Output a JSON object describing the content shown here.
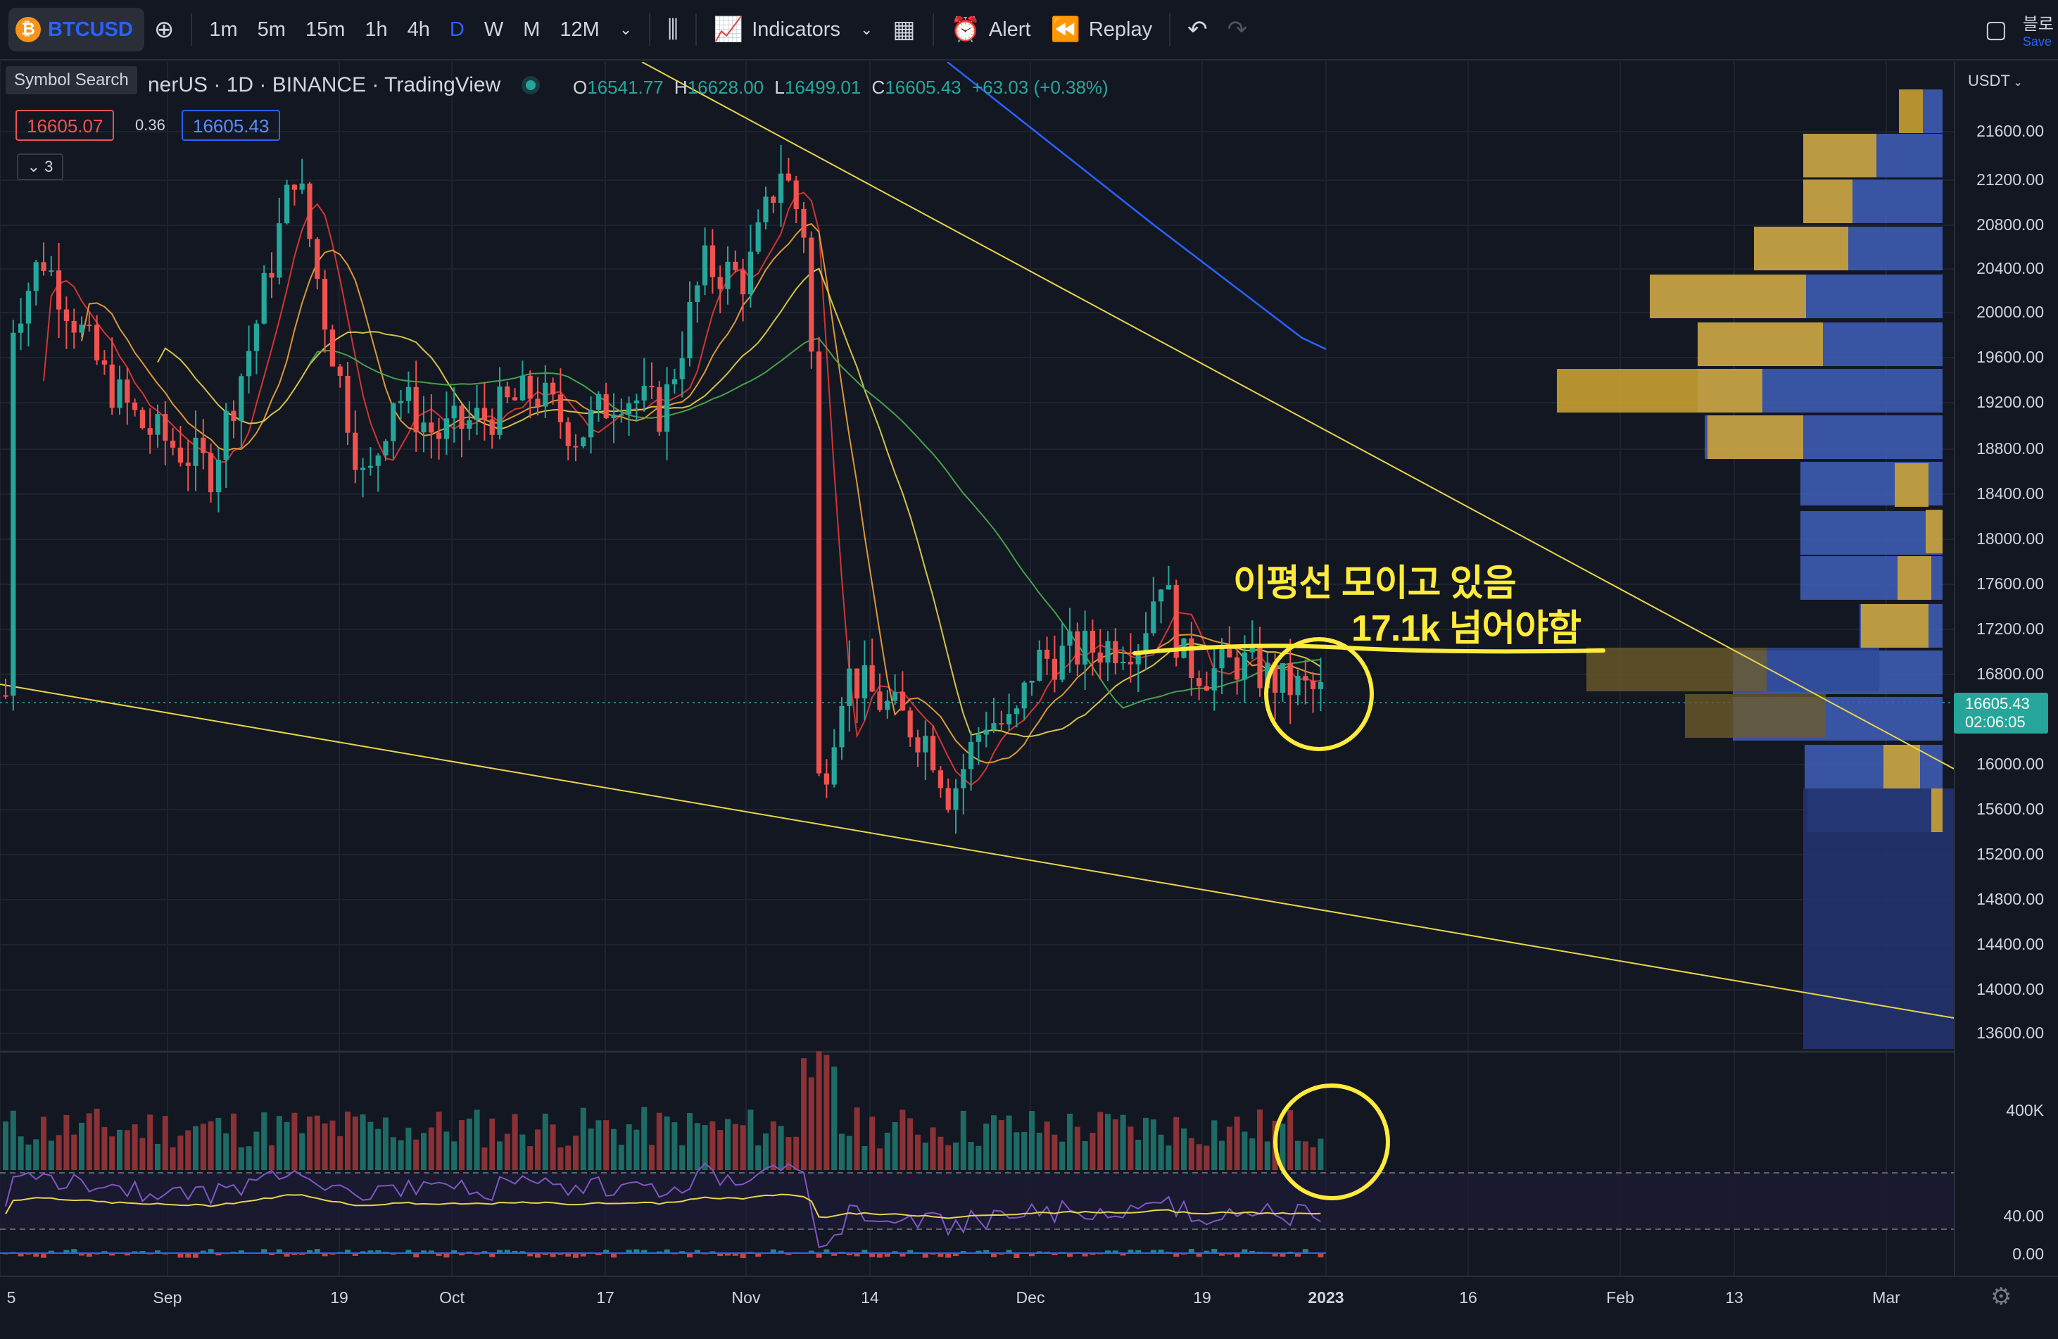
{
  "toolbar": {
    "symbol": "BTCUSD",
    "coin_glyph": "₿",
    "intervals": [
      "1m",
      "5m",
      "15m",
      "1h",
      "4h",
      "D",
      "W",
      "M",
      "12M"
    ],
    "active_interval": "D",
    "indicators_label": "Indicators",
    "alert_label": "Alert",
    "replay_label": "Replay",
    "right_label": "블로",
    "right_sublabel": "Save"
  },
  "tooltip": "Symbol Search",
  "legend": {
    "title": "nerUS · 1D · BINANCE · TradingView",
    "open_key": "O",
    "open": "16541.77",
    "high_key": "H",
    "high": "16628.00",
    "low_key": "L",
    "low": "16499.01",
    "close_key": "C",
    "close": "16605.43",
    "change": "+63.03 (+0.38%)"
  },
  "bid": "16605.07",
  "spread": "0.36",
  "ask": "16605.43",
  "collapse_count": "3",
  "price_axis": {
    "currency": "USDT",
    "labels": [
      "21600.00",
      "21200.00",
      "20800.00",
      "20400.00",
      "20000.00",
      "19600.00",
      "19200.00",
      "18800.00",
      "18400.00",
      "18000.00",
      "17600.00",
      "17200.00",
      "16800.00",
      "16000.00",
      "15600.00",
      "15200.00",
      "14800.00",
      "14400.00",
      "14000.00",
      "13600.00"
    ],
    "last_price": "16605.43",
    "countdown": "02:06:05",
    "volume_label": "400K",
    "rsi_label": "40.00",
    "macd_label": "0.00"
  },
  "time_axis": [
    "5",
    "Sep",
    "19",
    "Oct",
    "17",
    "Nov",
    "14",
    "Dec",
    "19",
    "2023",
    "16",
    "Feb",
    "13",
    "Mar"
  ],
  "annotations": {
    "line1": "이평선 모이고 있음",
    "line2": "17.1k 넘어야함"
  },
  "colors": {
    "up": "#26a69a",
    "down": "#ef5350",
    "annotation": "#ffeb3b",
    "accent": "#2962ff"
  },
  "chart_data": {
    "type": "candlestick",
    "symbol": "BTCUSD",
    "interval": "1D",
    "exchange": "BINANCE",
    "ylim": [
      13600,
      21800
    ],
    "last": 16605.43,
    "closes_approx": [
      {
        "x": "Sep 19",
        "y": 19400
      },
      {
        "x": "Oct 17",
        "y": 19500
      },
      {
        "x": "Nov 5",
        "y": 21200
      },
      {
        "x": "Nov 9",
        "y": 15800
      },
      {
        "x": "Nov 21",
        "y": 15800
      },
      {
        "x": "Dec 14",
        "y": 17800
      },
      {
        "x": "Dec 31",
        "y": 16605
      }
    ],
    "annotation_level": 17100
  }
}
